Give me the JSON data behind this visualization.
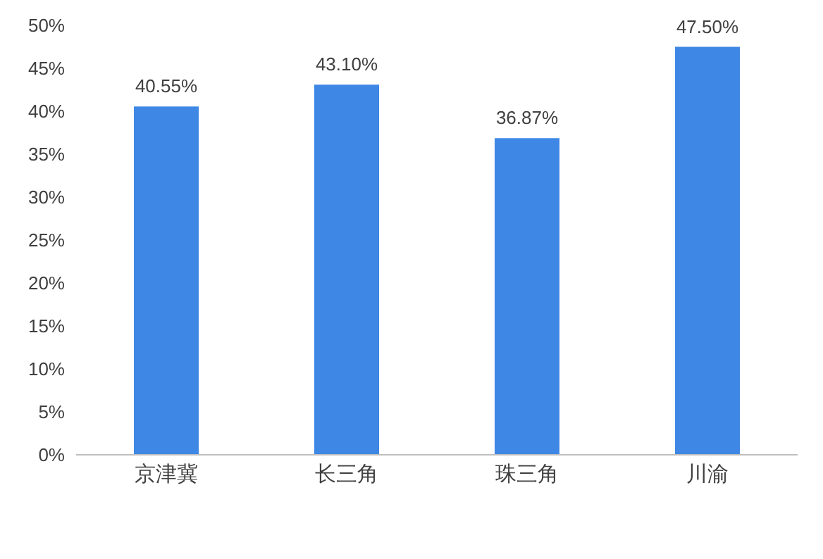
{
  "chart_data": {
    "type": "bar",
    "categories": [
      "京津冀",
      "长三角",
      "珠三角",
      "川渝"
    ],
    "values": [
      40.55,
      43.1,
      36.87,
      47.5
    ],
    "value_labels": [
      "40.55%",
      "43.10%",
      "36.87%",
      "47.50%"
    ],
    "color": "#3f87e5",
    "ylim": [
      0,
      50
    ],
    "yticks": [
      {
        "value": 0,
        "label": "0%"
      },
      {
        "value": 5,
        "label": "5%"
      },
      {
        "value": 10,
        "label": "10%"
      },
      {
        "value": 15,
        "label": "15%"
      },
      {
        "value": 20,
        "label": "20%"
      },
      {
        "value": 25,
        "label": "25%"
      },
      {
        "value": 30,
        "label": "30%"
      },
      {
        "value": 35,
        "label": "35%"
      },
      {
        "value": 40,
        "label": "40%"
      },
      {
        "value": 45,
        "label": "45%"
      },
      {
        "value": 50,
        "label": "50%"
      }
    ],
    "grid": false,
    "legend": false
  }
}
